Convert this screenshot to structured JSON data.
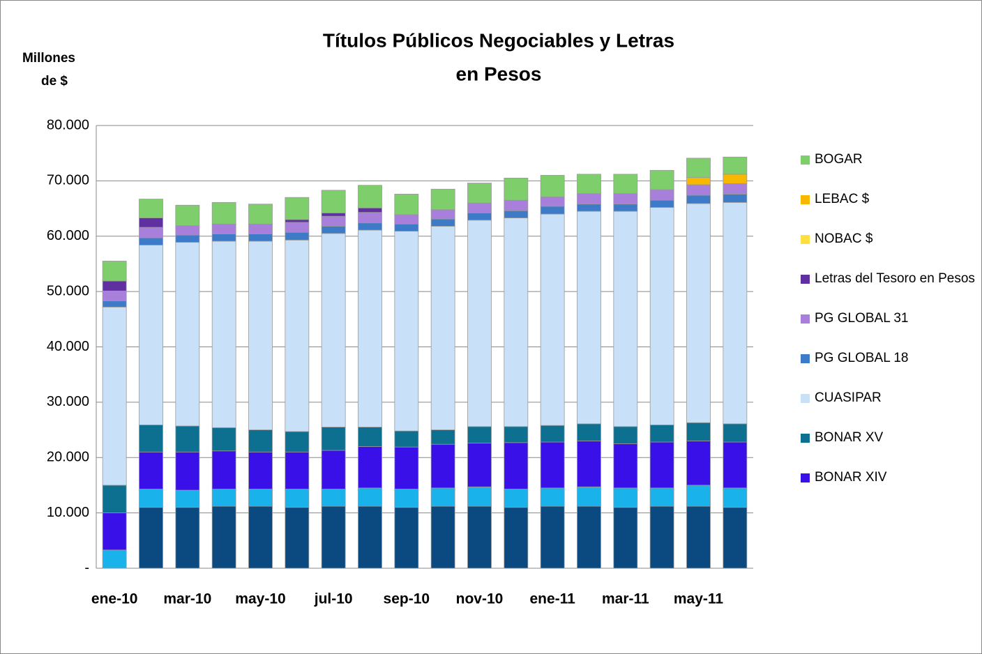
{
  "chart_data": {
    "type": "stacked_bar",
    "title": [
      "Títulos Públicos Negociables y Letras",
      "en Pesos"
    ],
    "y_label": [
      "Millones",
      "de $"
    ],
    "categories": [
      "ene-10",
      null,
      "mar-10",
      null,
      "may-10",
      null,
      "jul-10",
      null,
      "sep-10",
      null,
      "nov-10",
      null,
      "ene-11",
      null,
      "mar-11",
      null,
      "may-11",
      null
    ],
    "ylim": [
      0,
      80000
    ],
    "yticks": [
      {
        "value": 0,
        "label": "-"
      },
      {
        "value": 10000,
        "label": "10.000"
      },
      {
        "value": 20000,
        "label": "20.000"
      },
      {
        "value": 30000,
        "label": "30.000"
      },
      {
        "value": 40000,
        "label": "40.000"
      },
      {
        "value": 50000,
        "label": "50.000"
      },
      {
        "value": 60000,
        "label": "60.000"
      },
      {
        "value": 70000,
        "label": "70.000"
      },
      {
        "value": 80000,
        "label": "80.000"
      }
    ],
    "grid": true,
    "series": [
      {
        "name": null,
        "color": "#0b4a80",
        "values": [
          0,
          11000,
          11000,
          11200,
          11200,
          11000,
          11200,
          11200,
          11000,
          11200,
          11200,
          11000,
          11200,
          11200,
          11000,
          11200,
          11200,
          11000
        ]
      },
      {
        "name": null,
        "color": "#1ab2ea",
        "values": [
          3300,
          3300,
          3100,
          3100,
          3100,
          3300,
          3100,
          3300,
          3300,
          3300,
          3500,
          3300,
          3300,
          3500,
          3500,
          3300,
          3800,
          3500
        ]
      },
      {
        "name": "BONAR XIV",
        "color": "#3a10e8",
        "values": [
          6700,
          6700,
          6900,
          6900,
          6700,
          6700,
          7000,
          7500,
          7600,
          7900,
          7900,
          8400,
          8300,
          8300,
          8000,
          8300,
          8000,
          8300
        ]
      },
      {
        "name": "BONAR XV",
        "color": "#0e7090",
        "values": [
          5000,
          4900,
          4700,
          4200,
          4000,
          3700,
          4200,
          3500,
          2900,
          2600,
          3000,
          2900,
          3000,
          3100,
          3100,
          3100,
          3300,
          3300
        ]
      },
      {
        "name": "CUASIPAR",
        "color": "#c9e1f8",
        "values": [
          32200,
          32500,
          33200,
          33700,
          34100,
          34600,
          35000,
          35600,
          36100,
          36800,
          37300,
          37700,
          38200,
          38400,
          38900,
          39300,
          39600,
          40000
        ]
      },
      {
        "name": "PG GLOBAL 18",
        "color": "#3d7bc8",
        "values": [
          1100,
          1300,
          1300,
          1300,
          1300,
          1400,
          1300,
          1300,
          1300,
          1300,
          1300,
          1300,
          1400,
          1300,
          1300,
          1300,
          1500,
          1500
        ]
      },
      {
        "name": "PG GLOBAL 31",
        "color": "#a97fdc",
        "values": [
          1800,
          1900,
          1700,
          1800,
          1800,
          1800,
          1800,
          1900,
          1700,
          1700,
          1800,
          1900,
          1700,
          1900,
          1900,
          1900,
          1900,
          1900
        ]
      },
      {
        "name": "Letras del Tesoro en Pesos",
        "color": "#6030a0",
        "values": [
          1800,
          1700,
          0,
          0,
          0,
          500,
          600,
          800,
          0,
          0,
          0,
          0,
          0,
          0,
          0,
          0,
          0,
          0
        ]
      },
      {
        "name": "NOBAC $",
        "color": "#ffe040",
        "values": [
          0,
          0,
          0,
          0,
          0,
          0,
          0,
          0,
          0,
          0,
          0,
          0,
          0,
          0,
          0,
          0,
          0,
          0
        ]
      },
      {
        "name": "LEBAC $",
        "color": "#f8b800",
        "values": [
          0,
          0,
          0,
          0,
          0,
          0,
          0,
          0,
          0,
          0,
          0,
          0,
          0,
          0,
          0,
          0,
          1300,
          1700
        ]
      },
      {
        "name": "BOGAR",
        "color": "#7fce6c",
        "values": [
          3600,
          3400,
          3700,
          3900,
          3600,
          4000,
          4100,
          4100,
          3700,
          3700,
          3600,
          4000,
          3900,
          3500,
          3500,
          3500,
          3500,
          3100
        ]
      }
    ]
  }
}
